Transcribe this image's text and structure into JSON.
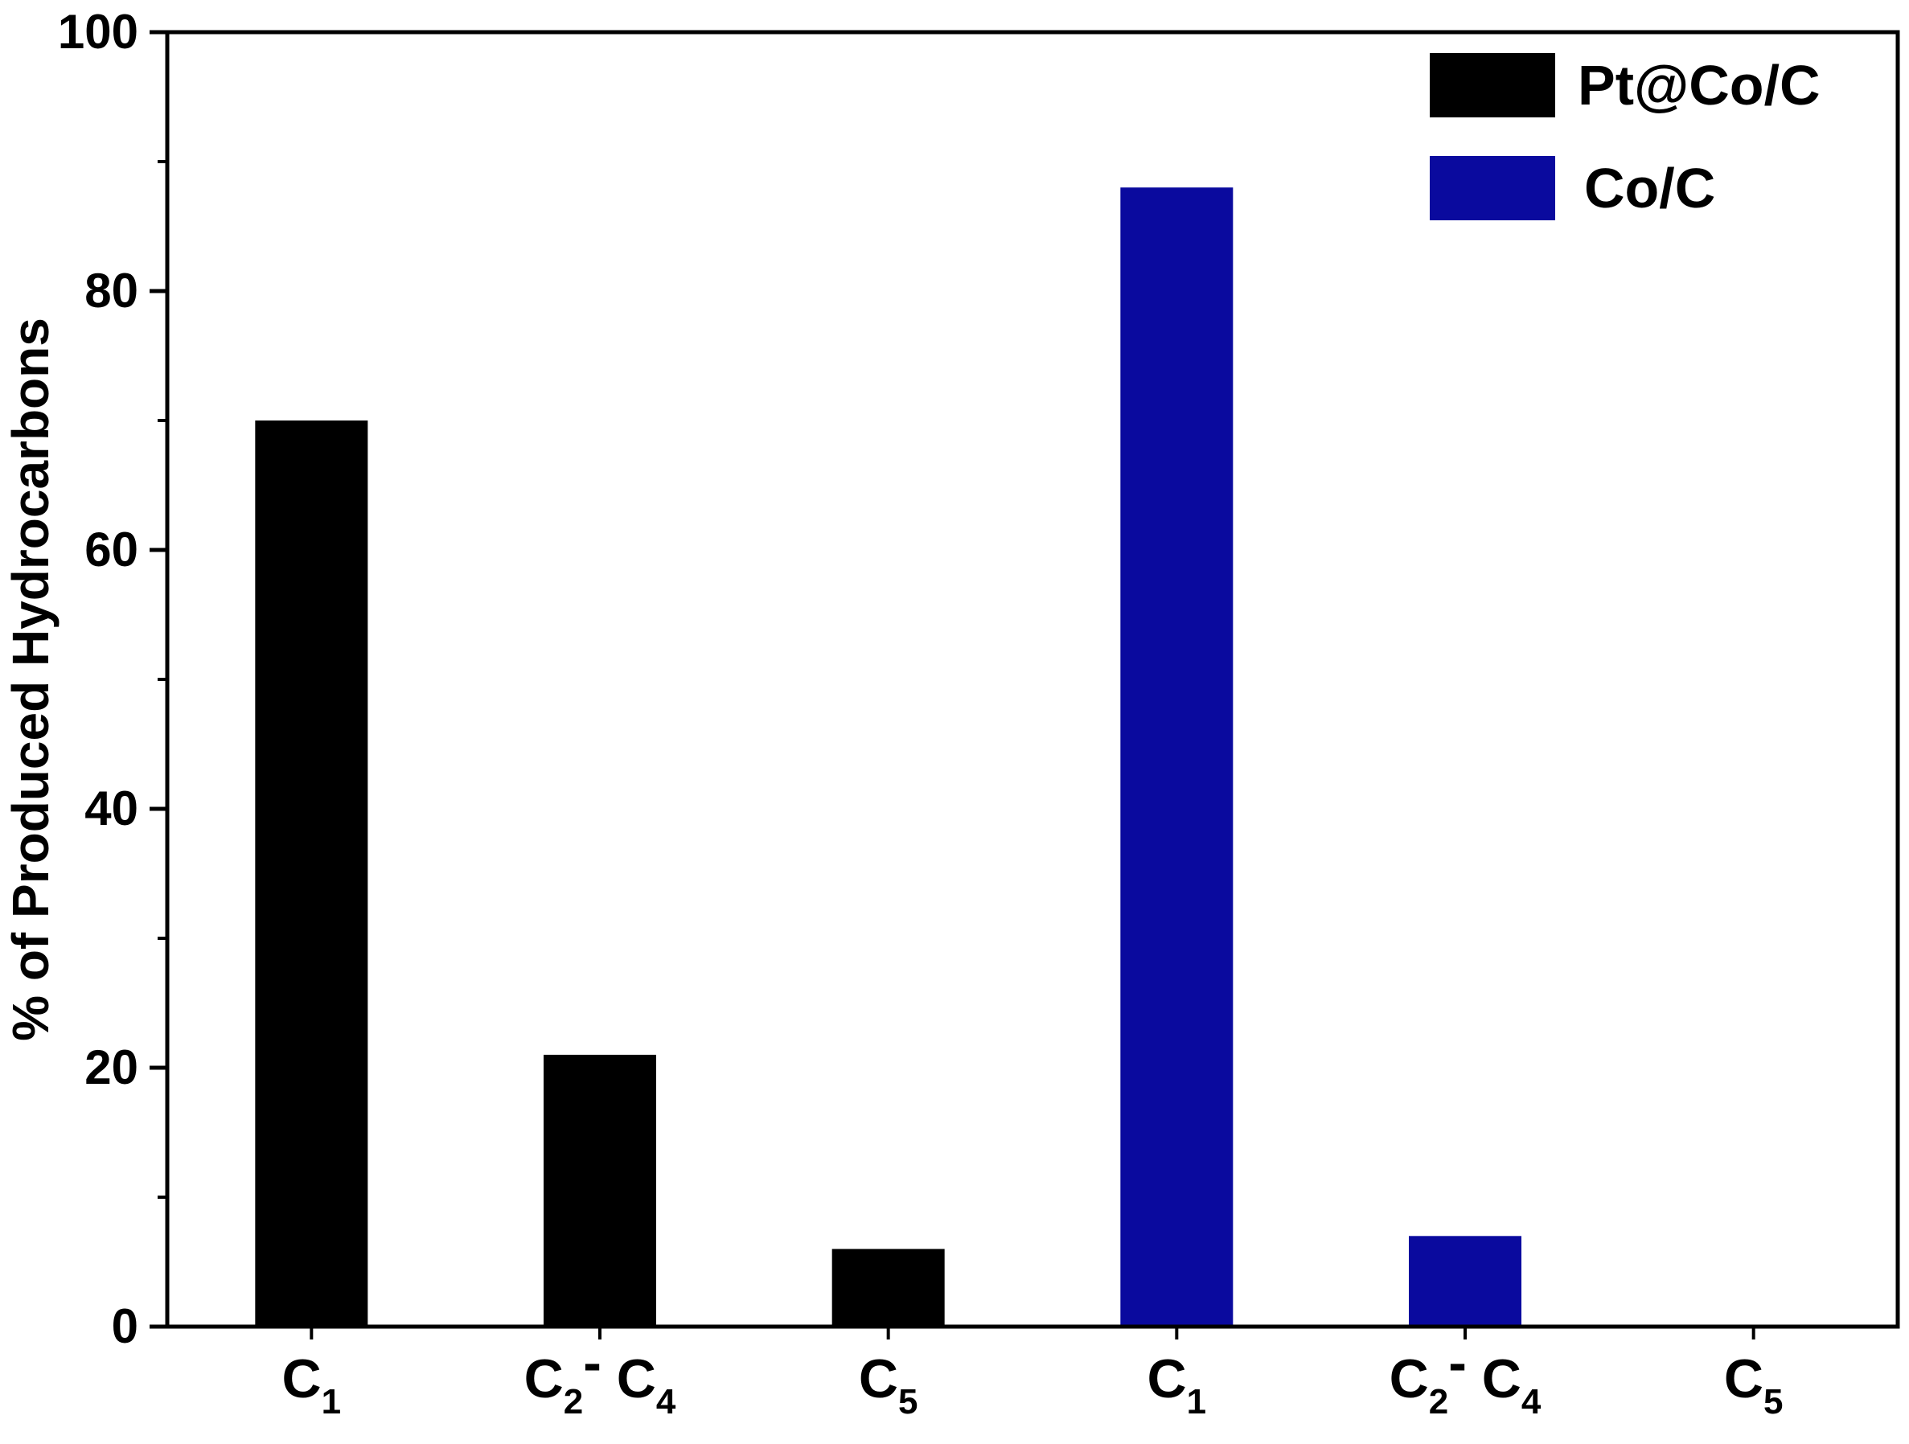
{
  "chart_data": {
    "type": "bar",
    "ylabel": "% of Produced Hydrocarbons",
    "ylim": [
      0,
      100
    ],
    "yticks": [
      "0",
      "20",
      "40",
      "60",
      "80",
      "100"
    ],
    "grid": false,
    "legend_position": "top-right",
    "categories": [
      {
        "base": "C",
        "sub": "1",
        "mid": "",
        "base2": "",
        "sub2": ""
      },
      {
        "base": "C",
        "sub": "2",
        "mid": "- ",
        "base2": "C",
        "sub2": "4"
      },
      {
        "base": "C",
        "sub": "5",
        "mid": "",
        "base2": "",
        "sub2": ""
      },
      {
        "base": "C",
        "sub": "1",
        "mid": "",
        "base2": "",
        "sub2": ""
      },
      {
        "base": "C",
        "sub": "2",
        "mid": "- ",
        "base2": "C",
        "sub2": "4"
      },
      {
        "base": "C",
        "sub": "5",
        "mid": "",
        "base2": "",
        "sub2": ""
      }
    ],
    "series": [
      {
        "name": "Pt@Co/C",
        "color": "#000000",
        "values": [
          70,
          21,
          6,
          null,
          null,
          null
        ]
      },
      {
        "name": "Co/C",
        "color": "#0a0a9e",
        "values": [
          null,
          null,
          null,
          88,
          7,
          0
        ]
      }
    ]
  }
}
